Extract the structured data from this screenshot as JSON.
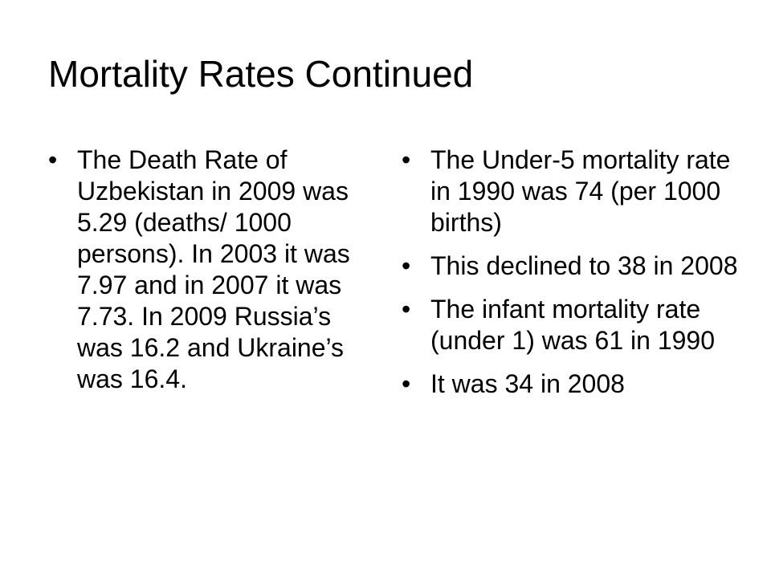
{
  "slide": {
    "title": "Mortality Rates Continued",
    "left_column": {
      "bullets": [
        "The Death Rate of Uzbekistan in 2009 was 5.29 (deaths/ 1000 persons). In 2003 it was 7.97 and in 2007 it was 7.73.  In 2009 Russia’s was 16.2 and Ukraine’s was 16.4."
      ]
    },
    "right_column": {
      "bullets": [
        "The Under-5 mortality rate in 1990 was 74 (per 1000 births)",
        "This declined to 38 in 2008",
        "The infant mortality rate (under 1) was 61 in 1990",
        "It was 34 in 2008"
      ]
    }
  }
}
